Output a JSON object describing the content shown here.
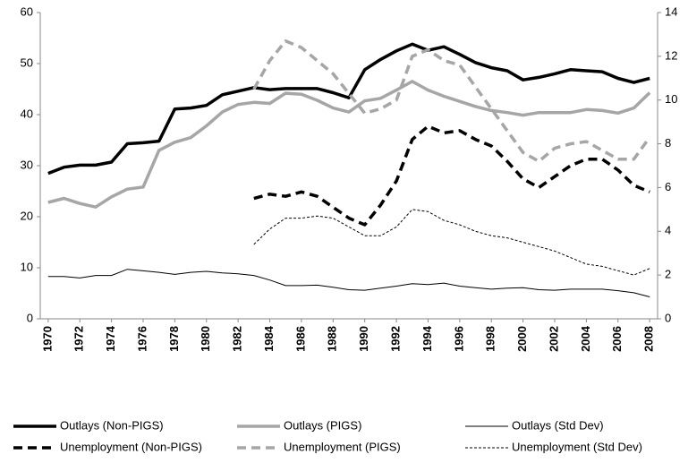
{
  "chart_data": {
    "type": "line",
    "x": [
      1970,
      1971,
      1972,
      1973,
      1974,
      1975,
      1976,
      1977,
      1978,
      1979,
      1980,
      1981,
      1982,
      1983,
      1984,
      1985,
      1986,
      1987,
      1988,
      1989,
      1990,
      1991,
      1992,
      1993,
      1994,
      1995,
      1996,
      1997,
      1998,
      1999,
      2000,
      2001,
      2002,
      2003,
      2004,
      2005,
      2006,
      2007,
      2008
    ],
    "xlim": [
      1969.5,
      2008.5
    ],
    "xticks": [
      1970,
      1972,
      1974,
      1976,
      1978,
      1980,
      1982,
      1984,
      1986,
      1988,
      1990,
      1992,
      1994,
      1996,
      1998,
      2000,
      2002,
      2004,
      2006,
      2008
    ],
    "ylim": [
      0,
      60
    ],
    "yticks": [
      0,
      10,
      20,
      30,
      40,
      50,
      60
    ],
    "y2lim": [
      0,
      14
    ],
    "y2ticks": [
      0,
      2,
      4,
      6,
      8,
      10,
      12,
      14
    ],
    "legend": "bottom",
    "series": [
      {
        "name": "Outlays (Non-PIGS)",
        "color": "#000000",
        "line_style": "solid",
        "line_weight": "bold",
        "axis": "y",
        "values": [
          28.5,
          29.7,
          30.1,
          30.1,
          30.7,
          34.3,
          34.5,
          34.8,
          41.1,
          41.3,
          41.8,
          43.9,
          44.6,
          45.3,
          44.9,
          45.1,
          45.1,
          45.1,
          44.3,
          43.3,
          48.8,
          50.8,
          52.5,
          53.8,
          52.6,
          53.3,
          51.8,
          50.2,
          49.2,
          48.6,
          46.8,
          47.3,
          48.0,
          48.8,
          48.6,
          48.4,
          47.1,
          46.3,
          47.1
        ]
      },
      {
        "name": "Outlays (PIGS)",
        "color": "#a6a6a6",
        "line_style": "solid",
        "line_weight": "bold",
        "axis": "y",
        "values": [
          22.8,
          23.6,
          22.6,
          21.9,
          23.9,
          25.4,
          25.8,
          33.0,
          34.6,
          35.5,
          37.8,
          40.5,
          42.0,
          42.4,
          42.2,
          44.2,
          44.0,
          42.8,
          41.3,
          40.5,
          42.7,
          43.2,
          44.8,
          46.5,
          44.8,
          43.6,
          42.6,
          41.6,
          40.8,
          40.4,
          39.9,
          40.4,
          40.4,
          40.4,
          41.0,
          40.8,
          40.3,
          41.3,
          44.3
        ]
      },
      {
        "name": "Outlays (Std Dev)",
        "color": "#000000",
        "line_style": "solid",
        "line_weight": "thin",
        "axis": "y",
        "values": [
          8.3,
          8.3,
          8.0,
          8.5,
          8.5,
          9.7,
          9.4,
          9.1,
          8.7,
          9.1,
          9.3,
          9.0,
          8.8,
          8.5,
          7.6,
          6.5,
          6.5,
          6.6,
          6.2,
          5.7,
          5.6,
          6.0,
          6.4,
          6.9,
          6.7,
          7.0,
          6.4,
          6.1,
          5.8,
          6.0,
          6.1,
          5.7,
          5.6,
          5.8,
          5.8,
          5.8,
          5.5,
          5.1,
          4.3
        ]
      },
      {
        "name": "Unemployment (Non-PIGS)",
        "color": "#000000",
        "line_style": "dashed",
        "line_weight": "bold",
        "axis": "y2",
        "values": [
          null,
          null,
          null,
          null,
          null,
          null,
          null,
          null,
          null,
          null,
          null,
          null,
          null,
          5.5,
          5.7,
          5.6,
          5.8,
          5.6,
          5.1,
          4.6,
          4.3,
          5.2,
          6.3,
          8.2,
          8.8,
          8.5,
          8.6,
          8.2,
          7.9,
          7.2,
          6.4,
          6.0,
          6.5,
          7.0,
          7.3,
          7.3,
          6.8,
          6.1,
          5.8
        ]
      },
      {
        "name": "Unemployment (PIGS)",
        "color": "#a6a6a6",
        "line_style": "dashed",
        "line_weight": "bold",
        "axis": "y2",
        "values": [
          null,
          null,
          null,
          null,
          null,
          null,
          null,
          null,
          null,
          null,
          null,
          null,
          null,
          10.5,
          11.8,
          12.7,
          12.4,
          11.8,
          11.2,
          10.3,
          9.4,
          9.6,
          10.0,
          12.0,
          12.3,
          11.8,
          11.6,
          10.6,
          9.6,
          8.6,
          7.6,
          7.2,
          7.8,
          8.0,
          8.1,
          7.7,
          7.3,
          7.3,
          8.3
        ]
      },
      {
        "name": "Unemployment (Std Dev)",
        "color": "#000000",
        "line_style": "dotted",
        "line_weight": "thin",
        "axis": "y2",
        "values": [
          null,
          null,
          null,
          null,
          null,
          null,
          null,
          null,
          null,
          null,
          null,
          null,
          null,
          3.4,
          4.1,
          4.6,
          4.6,
          4.7,
          4.6,
          4.2,
          3.8,
          3.8,
          4.2,
          5.0,
          4.9,
          4.5,
          4.3,
          4.0,
          3.8,
          3.7,
          3.5,
          3.3,
          3.1,
          2.8,
          2.5,
          2.4,
          2.2,
          2.0,
          2.3
        ]
      }
    ]
  }
}
